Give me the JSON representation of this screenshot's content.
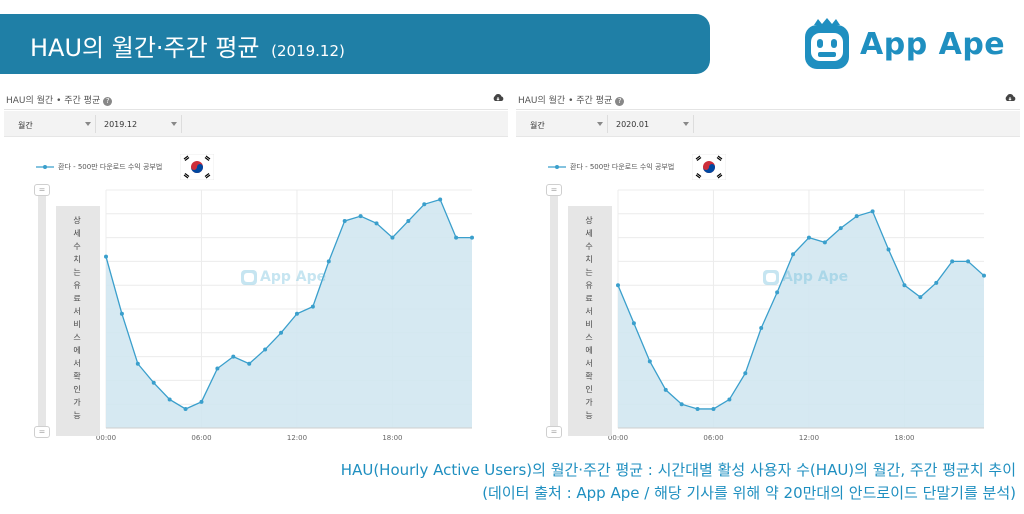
{
  "banner": {
    "title": "HAU의 월간·주간 평균",
    "subtitle": "(2019.12)"
  },
  "logo": {
    "text": "App Ape"
  },
  "panels": [
    {
      "title": "HAU의 월간 • 주간 평균",
      "period_select": "월간",
      "month_select": "2019.12",
      "legend": "환다 - 500만 다운로드 수익 공부법",
      "side_note": "상세수치는 유료서비스에서 확인가능",
      "watermark": "App Ape"
    },
    {
      "title": "HAU의 월간 • 주간 평균",
      "period_select": "월간",
      "month_select": "2020.01",
      "legend": "환다 - 500만 다운로드 수익 공부법",
      "side_note": "상세수치는 유료서비스에서 확인가능",
      "watermark": "App Ape"
    }
  ],
  "captions": {
    "line1": "HAU(Hourly Active Users)의 월간·주간 평균 : 시간대별 활성 사용자 수(HAU)의 월간, 주간 평균치 추이",
    "line2": "(데이터 출처 : App Ape / 해당 기사를 위해 약 20만대의 안드로이드 단말기를 분석)"
  },
  "colors": {
    "banner": "#1f7fa6",
    "series": "#3a9fcc",
    "fill": "#d2e7f1",
    "logo": "#1f8fc0"
  },
  "chart_data": [
    {
      "type": "area",
      "x": [
        "00:00",
        "01:00",
        "02:00",
        "03:00",
        "04:00",
        "05:00",
        "06:00",
        "07:00",
        "08:00",
        "09:00",
        "10:00",
        "11:00",
        "12:00",
        "13:00",
        "14:00",
        "15:00",
        "16:00",
        "17:00",
        "18:00",
        "19:00",
        "20:00",
        "21:00",
        "22:00",
        "23:00"
      ],
      "x_ticks": [
        "00:00",
        "06:00",
        "12:00",
        "18:00"
      ],
      "series": [
        {
          "name": "환다 - 500만 다운로드 수익 공부법",
          "values": [
            72,
            48,
            27,
            19,
            12,
            8,
            11,
            25,
            30,
            27,
            33,
            40,
            48,
            51,
            70,
            87,
            89,
            86,
            80,
            87,
            94,
            96,
            80,
            80
          ]
        }
      ],
      "ylim": [
        0,
        100
      ],
      "grid": true
    },
    {
      "type": "area",
      "x": [
        "00:00",
        "01:00",
        "02:00",
        "03:00",
        "04:00",
        "05:00",
        "06:00",
        "07:00",
        "08:00",
        "09:00",
        "10:00",
        "11:00",
        "12:00",
        "13:00",
        "14:00",
        "15:00",
        "16:00",
        "17:00",
        "18:00",
        "19:00",
        "20:00",
        "21:00",
        "22:00",
        "23:00"
      ],
      "x_ticks": [
        "00:00",
        "06:00",
        "12:00",
        "18:00"
      ],
      "series": [
        {
          "name": "환다 - 500만 다운로드 수익 공부법",
          "values": [
            60,
            44,
            28,
            16,
            10,
            8,
            8,
            12,
            23,
            42,
            57,
            73,
            80,
            78,
            84,
            89,
            91,
            75,
            60,
            55,
            61,
            70,
            70,
            64
          ]
        }
      ],
      "ylim": [
        0,
        100
      ],
      "grid": true
    }
  ]
}
